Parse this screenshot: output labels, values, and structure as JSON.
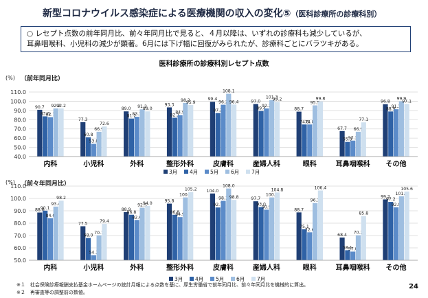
{
  "page": {
    "title": "新型コロナウイルス感染症による医療機関の収入の変化⑤",
    "subtitle": "（医科診療所の診療科別）",
    "summary_marker": "○",
    "summary_line1": "レセプト点数の前年同月比、前々年同月比で見ると、４月以降は、いずれの診療科も減少しているが、",
    "summary_line2": "耳鼻咽喉科、小児科の減少が顕著。6月には下げ幅に回復がみられたが、診療科ごとにバラツキがある。",
    "chart_title": "医科診療所の診療科別レセプト点数",
    "footnote1": "※１　社会保険診療報酬支払基金ホームページの統計月報による点数を基に、厚生労働省で前年同月比、前々年同月比を機械的に算出。",
    "footnote2": "※２　再審査等の調整前の数値。",
    "page_number": "24"
  },
  "colors": {
    "3月": "#1f3f75",
    "4月": "#2f62a6",
    "5月": "#5b8bc9",
    "6月": "#9ebee0",
    "7月": "#cfe0ef"
  },
  "chart_data": [
    {
      "type": "bar",
      "title": "（前年同月比）",
      "ylabel": "(%)",
      "ylim": [
        40.0,
        110.0
      ],
      "yticks": [
        "110.0",
        "100.0",
        "90.0",
        "80.0",
        "70.0",
        "60.0",
        "50.0",
        "40.0"
      ],
      "grid": true,
      "legend": "bottom-right",
      "categories": [
        "内科",
        "小児科",
        "外科",
        "整形外科",
        "皮膚科",
        "産婦人科",
        "眼科",
        "耳鼻咽喉科",
        "その他"
      ],
      "series": [
        {
          "name": "3月",
          "values": [
            90.7,
            77.3,
            89.0,
            93.3,
            99.4,
            97.0,
            88.7,
            67.7,
            96.8
          ]
        },
        {
          "name": "4月",
          "values": [
            83.6,
            60.8,
            81.2,
            82.1,
            87.2,
            89.4,
            74.8,
            55.9,
            88.9
          ]
        },
        {
          "name": "5月",
          "values": [
            82.7,
            53.8,
            83.1,
            84.9,
            96.2,
            92.2,
            74.8,
            57.3,
            91.3
          ]
        },
        {
          "name": "6月",
          "values": [
            92.2,
            66.9,
            91.2,
            98.2,
            108.1,
            101.3,
            95.5,
            66.9,
            99.9
          ]
        },
        {
          "name": "7月",
          "values": [
            92.2,
            72.6,
            89.0,
            95.9,
            96.4,
            99.2,
            99.8,
            77.1,
            97.1
          ]
        }
      ]
    },
    {
      "type": "bar",
      "title": "（前々年同月比）",
      "ylabel": "(%)",
      "ylim": [
        50.0,
        110.0
      ],
      "yticks": [
        "110.0",
        "100.0",
        "90.0",
        "80.0",
        "70.0",
        "60.0",
        "50.0"
      ],
      "grid": true,
      "legend": "bottom-center",
      "categories": [
        "内科",
        "小児科",
        "外科",
        "整形外科",
        "皮膚科",
        "産婦人科",
        "眼科",
        "耳鼻咽喉科",
        "その他"
      ],
      "series": [
        {
          "name": "3月",
          "values": [
            88.6,
            77.5,
            88.9,
            95.8,
            104.0,
            97.7,
            88.7,
            68.4,
            99.2
          ]
        },
        {
          "name": "4月",
          "values": [
            90.1,
            68.0,
            86.8,
            86.8,
            92.7,
            93.0,
            75.1,
            58.1,
            97.2
          ]
        },
        {
          "name": "5月",
          "values": [
            84.0,
            54.1,
            82.6,
            84.9,
            98.1,
            90.9,
            72.6,
            57.0,
            92.8
          ]
        },
        {
          "name": "6月",
          "values": [
            93.4,
            70.1,
            92.5,
            100.8,
            108.0,
            100.8,
            96.3,
            70.2,
            101.8
          ]
        },
        {
          "name": "7月",
          "values": [
            98.2,
            79.4,
            94.0,
            105.2,
            98.8,
            104.8,
            106.4,
            85.8,
            105.6
          ]
        }
      ]
    }
  ]
}
